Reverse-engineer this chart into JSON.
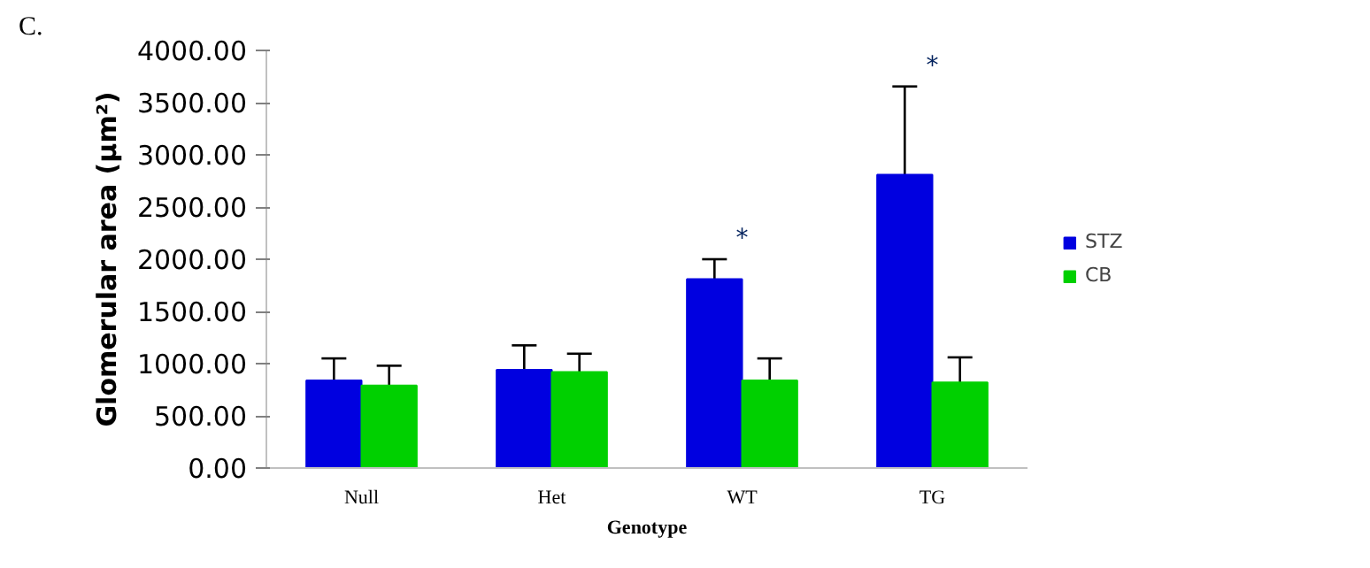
{
  "chart_data": {
    "type": "bar",
    "xlabel": "Genotype",
    "ylabel": "Glomerular area (µm²)",
    "categories": [
      "Null",
      "Het",
      "WT",
      "TG"
    ],
    "series": [
      {
        "name": "STZ",
        "color": "#0000e0",
        "values": [
          840,
          940,
          1810,
          2810
        ],
        "errors": [
          210,
          235,
          190,
          845
        ]
      },
      {
        "name": "CB",
        "color": "#00d000",
        "values": [
          790,
          920,
          840,
          820
        ],
        "errors": [
          190,
          175,
          210,
          240
        ]
      }
    ],
    "ylim": [
      0,
      4000
    ],
    "yticks": [
      {
        "value": 0,
        "label": "0.00"
      },
      {
        "value": 500,
        "label": "500.00"
      },
      {
        "value": 1000,
        "label": "1000.00"
      },
      {
        "value": 1500,
        "label": "1500.00"
      },
      {
        "value": 2000,
        "label": "2000.00"
      },
      {
        "value": 2500,
        "label": "2500.00"
      },
      {
        "value": 3000,
        "label": "3000.00"
      },
      {
        "value": 3500,
        "label": "3500.00"
      },
      {
        "value": 4000,
        "label": "4000.00"
      }
    ],
    "annotations": [
      "C.",
      "*",
      "*"
    ],
    "grid": false,
    "legend": "right"
  }
}
